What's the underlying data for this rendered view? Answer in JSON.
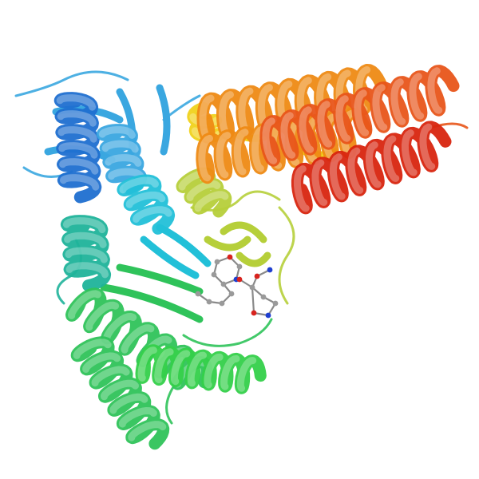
{
  "image": {
    "kind": "protein-ribbon-structure",
    "background_color": "#ffffff"
  },
  "colors": {
    "n_terminal_blue": "#1f6fd0",
    "sky_blue": "#3aa7e0",
    "cyan": "#22c0d8",
    "teal": "#1fb39a",
    "green": "#2fc35a",
    "bright_green": "#34d04a",
    "yellow_green": "#b6cf3a",
    "yellow": "#f0d21c",
    "orange": "#ee8a14",
    "orange_red": "#e8551a",
    "c_terminal_red": "#d8250f",
    "ligand_carbon": "#9a9a9a",
    "ligand_oxygen": "#d8231e",
    "ligand_nitrogen": "#1f3fd0"
  },
  "ligand": {
    "present": true,
    "style": "ball-and-stick",
    "atom_colors": [
      "grey",
      "red",
      "blue"
    ]
  }
}
